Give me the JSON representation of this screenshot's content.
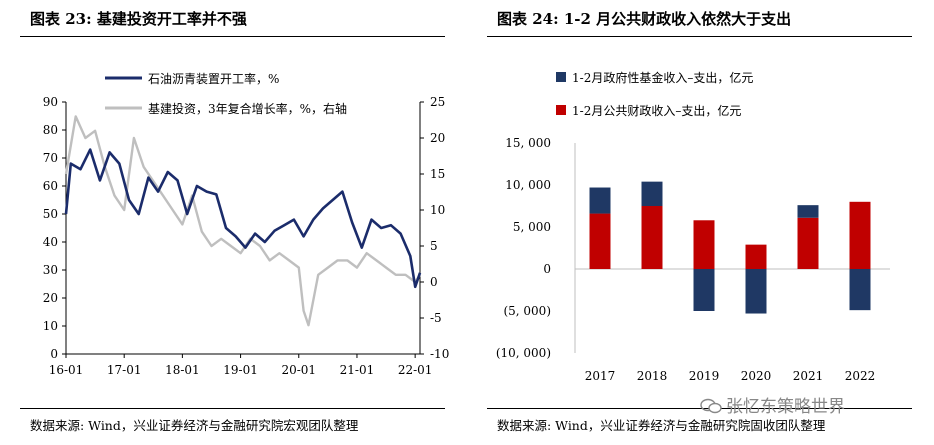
{
  "left_chart": {
    "title": "图表 23:  基建投资开工率并不强",
    "source": "数据来源: Wind，兴业证券经济与金融研究院宏观团队整理"
  },
  "right_chart": {
    "title": "图表 24:  1-2 月公共财政收入依然大于支出",
    "source": "数据来源: Wind，兴业证券经济与金融研究院固收团队整理"
  },
  "watermark": "张忆东策略世界",
  "colors": {
    "navy": "#1b2c6b",
    "gray": "#bfbfbf",
    "bar_navy": "#1f3864",
    "bar_red": "#c00000",
    "neg_label": "#c00000"
  },
  "chart_data": [
    {
      "type": "line",
      "title": "",
      "x_tick_labels": [
        "16-01",
        "17-01",
        "18-01",
        "19-01",
        "20-01",
        "21-01",
        "22-01"
      ],
      "x_range": [
        "2016-01",
        "2022-02"
      ],
      "y_left_ticks": [
        "0",
        "10",
        "20",
        "30",
        "40",
        "50",
        "60",
        "70",
        "80",
        "90"
      ],
      "y_left_range": [
        0,
        90
      ],
      "y_right_ticks": [
        "-10",
        "-5",
        "0",
        "5",
        "10",
        "15",
        "20",
        "25"
      ],
      "y_right_range": [
        -10,
        25
      ],
      "legend_position": "top",
      "series": [
        {
          "name": "石油沥青装置开工率，%",
          "axis": "left",
          "color": "#1b2c6b",
          "x": [
            "2016-01",
            "2016-02",
            "2016-04",
            "2016-06",
            "2016-08",
            "2016-10",
            "2016-12",
            "2017-02",
            "2017-04",
            "2017-06",
            "2017-08",
            "2017-10",
            "2017-12",
            "2018-02",
            "2018-04",
            "2018-06",
            "2018-08",
            "2018-10",
            "2018-12",
            "2019-02",
            "2019-04",
            "2019-06",
            "2019-08",
            "2019-10",
            "2019-12",
            "2020-02",
            "2020-04",
            "2020-06",
            "2020-08",
            "2020-10",
            "2020-12",
            "2021-02",
            "2021-04",
            "2021-06",
            "2021-08",
            "2021-10",
            "2021-12",
            "2022-01",
            "2022-02"
          ],
          "values": [
            50,
            68,
            66,
            73,
            62,
            72,
            68,
            55,
            50,
            63,
            58,
            65,
            62,
            50,
            60,
            58,
            57,
            45,
            42,
            38,
            43,
            40,
            44,
            46,
            48,
            42,
            48,
            52,
            55,
            58,
            47,
            38,
            48,
            45,
            46,
            43,
            35,
            24,
            29
          ]
        },
        {
          "name": "基建投资，3年复合增长率，%，右轴",
          "axis": "right",
          "color": "#bfbfbf",
          "x": [
            "2016-01",
            "2016-03",
            "2016-05",
            "2016-07",
            "2016-09",
            "2016-11",
            "2017-01",
            "2017-03",
            "2017-05",
            "2017-07",
            "2017-09",
            "2017-11",
            "2018-01",
            "2018-03",
            "2018-05",
            "2018-07",
            "2018-09",
            "2018-11",
            "2019-01",
            "2019-03",
            "2019-05",
            "2019-07",
            "2019-09",
            "2019-11",
            "2020-01",
            "2020-02",
            "2020-03",
            "2020-05",
            "2020-07",
            "2020-09",
            "2020-11",
            "2021-01",
            "2021-03",
            "2021-05",
            "2021-07",
            "2021-09",
            "2021-11",
            "2022-01",
            "2022-02"
          ],
          "values": [
            15,
            23,
            20,
            21,
            16,
            12,
            10,
            20,
            16,
            14,
            12,
            10,
            8,
            12,
            7,
            5,
            6,
            5,
            4,
            6,
            5,
            3,
            4,
            3,
            2,
            -4,
            -6,
            1,
            2,
            3,
            3,
            2,
            4,
            3,
            2,
            1,
            1,
            0,
            1
          ]
        }
      ]
    },
    {
      "type": "bar",
      "title": "",
      "categories": [
        "2017",
        "2018",
        "2019",
        "2020",
        "2021",
        "2022"
      ],
      "y_ticks": [
        "15, 000",
        "10, 000",
        "5, 000",
        "0",
        "(5, 000)",
        "(10, 000)"
      ],
      "y_range": [
        -10000,
        15000
      ],
      "legend_position": "top",
      "stacked": true,
      "series": [
        {
          "name": "1-2月政府性基金收入–支出，亿元",
          "color": "#1f3864",
          "values": [
            3100,
            2900,
            -5000,
            -5300,
            1500,
            -4900
          ]
        },
        {
          "name": "1-2月公共财政收入–支出，亿元",
          "color": "#c00000",
          "values": [
            6600,
            7500,
            5800,
            2900,
            6100,
            8000
          ]
        }
      ]
    }
  ]
}
